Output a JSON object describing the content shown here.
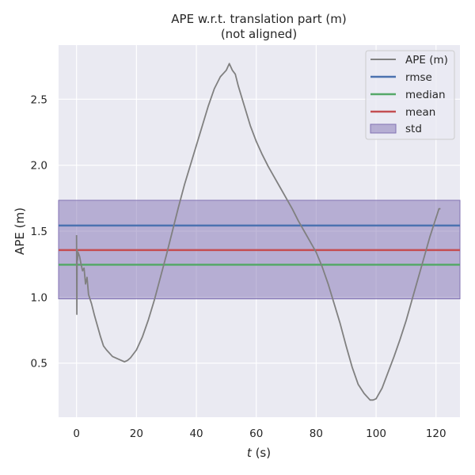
{
  "chart_data": {
    "type": "line",
    "title": "APE w.r.t. translation part (m)",
    "subtitle": "(not aligned)",
    "xlabel_var": "t",
    "xlabel_unit": " (s)",
    "ylabel": "APE (m)",
    "xlim": [
      -6,
      128
    ],
    "ylim": [
      0.09,
      2.91
    ],
    "xticks": [
      0,
      20,
      40,
      60,
      80,
      100,
      120
    ],
    "yticks": [
      0.5,
      1.0,
      1.5,
      2.0,
      2.5
    ],
    "ytick_labels": [
      "0.5",
      "1.0",
      "1.5",
      "2.0",
      "2.5"
    ],
    "grid": true,
    "legend_position": "top-right",
    "series": [
      {
        "name": "APE (m)",
        "color": "#808080",
        "x": [
          0,
          0.1,
          0.2,
          0.3,
          0.5,
          1,
          1.5,
          2,
          2.5,
          3,
          3.5,
          4,
          5,
          6,
          7,
          8,
          9,
          10,
          12,
          14,
          16,
          17,
          18,
          20,
          22,
          24,
          26,
          28,
          30,
          32,
          34,
          36,
          38,
          40,
          42,
          44,
          46,
          48,
          50,
          51,
          52,
          53,
          54,
          56,
          58,
          60,
          62,
          64,
          66,
          68,
          70,
          72,
          74,
          76,
          78,
          80,
          82,
          84,
          86,
          88,
          90,
          92,
          94,
          96,
          98,
          99,
          100,
          102,
          104,
          106,
          108,
          110,
          112,
          114,
          116,
          118,
          120,
          121,
          121.5
        ],
        "values": [
          1.47,
          0.87,
          1.36,
          1.28,
          1.34,
          1.31,
          1.25,
          1.2,
          1.22,
          1.1,
          1.15,
          1.02,
          0.95,
          0.86,
          0.78,
          0.7,
          0.63,
          0.6,
          0.55,
          0.53,
          0.51,
          0.52,
          0.54,
          0.6,
          0.7,
          0.83,
          0.98,
          1.15,
          1.32,
          1.5,
          1.68,
          1.85,
          2.0,
          2.15,
          2.3,
          2.45,
          2.58,
          2.67,
          2.72,
          2.77,
          2.72,
          2.69,
          2.6,
          2.45,
          2.3,
          2.18,
          2.08,
          1.99,
          1.91,
          1.83,
          1.75,
          1.67,
          1.58,
          1.5,
          1.42,
          1.34,
          1.23,
          1.1,
          0.95,
          0.8,
          0.63,
          0.47,
          0.34,
          0.27,
          0.22,
          0.22,
          0.23,
          0.31,
          0.43,
          0.55,
          0.68,
          0.82,
          0.98,
          1.14,
          1.3,
          1.46,
          1.6,
          1.67,
          1.67
        ]
      }
    ],
    "stats": {
      "rmse": {
        "name": "rmse",
        "value": 1.543,
        "color": "#4c72b0"
      },
      "median": {
        "name": "median",
        "value": 1.246,
        "color": "#55a868"
      },
      "mean": {
        "name": "mean",
        "value": 1.357,
        "color": "#c44e52"
      },
      "std": {
        "name": "std",
        "lower": 0.987,
        "upper": 1.734,
        "color": "#8172b3"
      }
    }
  }
}
